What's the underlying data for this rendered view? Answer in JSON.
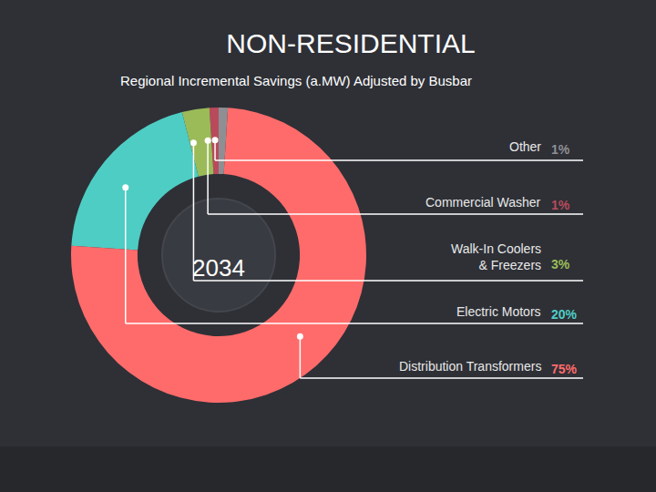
{
  "chart_data": {
    "type": "pie",
    "title": "NON-RESIDENTIAL",
    "subtitle": "Regional Incremental Savings (a.MW) Adjusted by Busbar",
    "categories": [
      "Other",
      "Commercial Washer",
      "Walk-In Coolers\n& Freezers",
      "Electric Motors",
      "Distribution Transformers"
    ],
    "values": [
      1,
      1,
      3,
      20,
      75
    ],
    "value_labels": [
      "1%",
      "1%",
      "3%",
      "20%",
      "75%"
    ],
    "colors": [
      "#8e8f93",
      "#b94a5c",
      "#9bbb59",
      "#4ecdc4",
      "#ff6b6b"
    ],
    "data_labels": true,
    "annotations": [
      "2034"
    ]
  }
}
